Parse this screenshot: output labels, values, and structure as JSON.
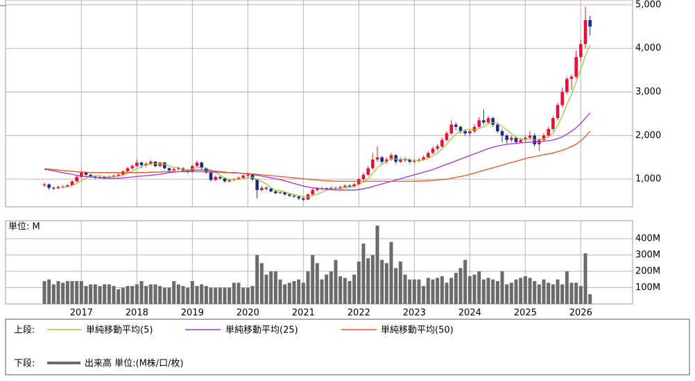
{
  "chart_data": {
    "type": "candlestick",
    "categories": [
      null,
      null,
      null,
      null,
      null,
      null,
      null,
      null,
      "2017",
      null,
      null,
      null,
      null,
      null,
      null,
      null,
      null,
      null,
      null,
      null,
      "2018",
      null,
      null,
      null,
      null,
      null,
      null,
      null,
      null,
      null,
      null,
      null,
      "2019",
      null,
      null,
      null,
      null,
      null,
      null,
      null,
      null,
      null,
      null,
      null,
      "2020",
      null,
      null,
      null,
      null,
      null,
      null,
      null,
      null,
      null,
      null,
      null,
      "2021",
      null,
      null,
      null,
      null,
      null,
      null,
      null,
      null,
      null,
      null,
      null,
      "2022",
      null,
      null,
      null,
      null,
      null,
      null,
      null,
      null,
      null,
      null,
      null,
      "2023",
      null,
      null,
      null,
      null,
      null,
      null,
      null,
      null,
      null,
      null,
      null,
      "2024",
      null,
      null,
      null,
      null,
      null,
      null,
      null,
      null,
      null,
      null,
      null,
      "2025",
      null,
      null,
      null,
      null,
      null,
      null,
      null,
      null,
      null,
      null,
      null,
      "2026",
      null,
      null
    ],
    "open": [
      860,
      880,
      800,
      790,
      820,
      830,
      860,
      950,
      1050,
      1150,
      1100,
      1060,
      1040,
      1050,
      1030,
      1060,
      1080,
      1100,
      1180,
      1250,
      1300,
      1380,
      1320,
      1350,
      1400,
      1300,
      1380,
      1250,
      1200,
      1230,
      1250,
      1200,
      1180,
      1300,
      1380,
      1250,
      1150,
      980,
      1050,
      1020,
      950,
      980,
      1000,
      1030,
      1080,
      1100,
      1000,
      750,
      800,
      780,
      720,
      680,
      700,
      650,
      620,
      600,
      560,
      530,
      650,
      750,
      780,
      790,
      760,
      800,
      780,
      820,
      850,
      830,
      880,
      1000,
      1100,
      1250,
      1450,
      1500,
      1400,
      1450,
      1550,
      1400,
      1450,
      1450,
      1400,
      1420,
      1450,
      1500,
      1600,
      1700,
      1750,
      1900,
      2050,
      2250,
      2200,
      2100,
      2050,
      2100,
      2200,
      2350,
      2300,
      2400,
      2250,
      2100,
      2000,
      1900,
      1950,
      1850,
      1900,
      1950,
      2000,
      1800,
      1900,
      2000,
      2150,
      2400,
      2700,
      3000,
      3300,
      3350,
      3800,
      4100,
      4650
    ],
    "high": [
      920,
      900,
      830,
      850,
      860,
      890,
      970,
      1080,
      1200,
      1170,
      1120,
      1080,
      1080,
      1070,
      1090,
      1110,
      1130,
      1200,
      1280,
      1340,
      1450,
      1400,
      1380,
      1440,
      1420,
      1400,
      1390,
      1270,
      1260,
      1290,
      1270,
      1230,
      1330,
      1420,
      1400,
      1270,
      1160,
      1080,
      1070,
      1030,
      1000,
      1020,
      1060,
      1100,
      1150,
      1120,
      1010,
      850,
      830,
      800,
      740,
      730,
      710,
      670,
      640,
      620,
      580,
      670,
      780,
      820,
      830,
      810,
      830,
      820,
      850,
      880,
      880,
      910,
      1030,
      1150,
      1300,
      1600,
      1750,
      1530,
      1500,
      1600,
      1570,
      1500,
      1500,
      1480,
      1460,
      1490,
      1540,
      1640,
      1750,
      1800,
      1960,
      2100,
      2350,
      2300,
      2230,
      2150,
      2150,
      2260,
      2420,
      2600,
      2450,
      2430,
      2300,
      2150,
      2030,
      2000,
      1980,
      1950,
      2000,
      2100,
      2050,
      1950,
      2050,
      2200,
      2450,
      2750,
      3100,
      3350,
      3400,
      3950,
      4200,
      4950,
      4750
    ],
    "low": [
      820,
      760,
      750,
      770,
      790,
      810,
      840,
      930,
      1030,
      1070,
      1030,
      1010,
      1010,
      1000,
      1010,
      1040,
      1050,
      1080,
      1160,
      1230,
      1280,
      1250,
      1280,
      1320,
      1270,
      1280,
      1220,
      1170,
      1180,
      1200,
      1160,
      1130,
      1150,
      1280,
      1230,
      1120,
      950,
      960,
      990,
      920,
      930,
      960,
      980,
      1010,
      1050,
      960,
      560,
      720,
      740,
      700,
      650,
      660,
      620,
      590,
      570,
      520,
      500,
      520,
      630,
      720,
      750,
      730,
      740,
      750,
      760,
      800,
      800,
      810,
      860,
      970,
      1080,
      1220,
      1400,
      1330,
      1350,
      1420,
      1350,
      1370,
      1400,
      1360,
      1370,
      1390,
      1420,
      1480,
      1570,
      1660,
      1720,
      1870,
      2020,
      2130,
      2050,
      2000,
      1980,
      2050,
      2170,
      2250,
      2250,
      2200,
      2050,
      1850,
      1820,
      1850,
      1800,
      1820,
      1850,
      1900,
      1750,
      1650,
      1860,
      1950,
      2100,
      2350,
      2650,
      2950,
      3050,
      3300,
      3700,
      4000,
      4300
    ],
    "close": [
      880,
      800,
      790,
      820,
      830,
      860,
      950,
      1050,
      1150,
      1100,
      1060,
      1040,
      1050,
      1030,
      1060,
      1080,
      1100,
      1180,
      1250,
      1300,
      1380,
      1320,
      1350,
      1400,
      1300,
      1380,
      1250,
      1200,
      1230,
      1250,
      1200,
      1180,
      1300,
      1380,
      1250,
      1150,
      980,
      1050,
      1020,
      950,
      980,
      1000,
      1030,
      1080,
      1100,
      1000,
      750,
      800,
      780,
      720,
      680,
      700,
      650,
      620,
      600,
      560,
      530,
      650,
      750,
      780,
      790,
      760,
      800,
      780,
      820,
      850,
      830,
      880,
      1000,
      1100,
      1250,
      1450,
      1500,
      1400,
      1450,
      1550,
      1400,
      1450,
      1450,
      1400,
      1420,
      1450,
      1500,
      1600,
      1700,
      1750,
      1900,
      2050,
      2250,
      2200,
      2100,
      2050,
      2100,
      2200,
      2350,
      2300,
      2400,
      2250,
      2100,
      2000,
      1900,
      1950,
      1850,
      1900,
      1950,
      2000,
      1800,
      1900,
      2000,
      2150,
      2400,
      2700,
      3000,
      3300,
      3350,
      3800,
      4100,
      4650,
      4500
    ],
    "up_color": "#e8103a",
    "down_color": "#1c2c86",
    "series": [
      {
        "name": "単純移動平均(5)",
        "color": "#9acd32",
        "values": [
          null,
          null,
          null,
          null,
          824,
          820,
          850,
          902,
          968,
          1022,
          1062,
          1080,
          1080,
          1056,
          1048,
          1052,
          1064,
          1090,
          1134,
          1182,
          1242,
          1286,
          1320,
          1350,
          1350,
          1350,
          1336,
          1306,
          1272,
          1262,
          1226,
          1212,
          1232,
          1262,
          1262,
          1252,
          1212,
          1162,
          1090,
          1030,
          996,
          1000,
          996,
          1008,
          1038,
          1042,
          992,
          946,
          886,
          810,
          746,
          736,
          706,
          674,
          650,
          626,
          592,
          592,
          618,
          654,
          700,
          746,
          776,
          782,
          790,
          802,
          816,
          832,
          876,
          932,
          1012,
          1136,
          1260,
          1340,
          1410,
          1470,
          1460,
          1450,
          1460,
          1450,
          1424,
          1434,
          1444,
          1474,
          1534,
          1600,
          1690,
          1800,
          1930,
          2030,
          2100,
          2130,
          2140,
          2130,
          2160,
          2200,
          2270,
          2300,
          2280,
          2210,
          2130,
          2040,
          1960,
          1920,
          1910,
          1930,
          1900,
          1910,
          1930,
          1970,
          2050,
          2230,
          2450,
          2710,
          2950,
          3230,
          3510,
          3840,
          4080
        ]
      },
      {
        "name": "単純移動平均(25)",
        "color": "#9b30e8",
        "values": [
          1230,
          1210,
          1190,
          1170,
          1150,
          1130,
          1110,
          1090,
          1070,
          1060,
          1050,
          1040,
          1030,
          1020,
          1020,
          1020,
          1020,
          1030,
          1040,
          1050,
          1060,
          1070,
          1080,
          1090,
          1100,
          1110,
          1130,
          1150,
          1160,
          1170,
          1180,
          1190,
          1200,
          1210,
          1210,
          1200,
          1190,
          1180,
          1170,
          1160,
          1150,
          1150,
          1140,
          1130,
          1120,
          1110,
          1090,
          1070,
          1050,
          1030,
          1010,
          990,
          960,
          930,
          900,
          870,
          840,
          820,
          800,
          790,
          780,
          770,
          760,
          750,
          750,
          750,
          750,
          750,
          760,
          780,
          800,
          830,
          860,
          890,
          920,
          950,
          980,
          1010,
          1040,
          1070,
          1100,
          1130,
          1160,
          1190,
          1220,
          1260,
          1300,
          1340,
          1380,
          1420,
          1460,
          1500,
          1540,
          1580,
          1620,
          1660,
          1700,
          1730,
          1760,
          1780,
          1800,
          1810,
          1820,
          1830,
          1840,
          1850,
          1850,
          1860,
          1870,
          1880,
          1900,
          1930,
          1970,
          2030,
          2100,
          2180,
          2280,
          2400,
          2520
        ]
      },
      {
        "name": "単純移動平均(50)",
        "color": "#f0501e",
        "values": [
          1240,
          1230,
          1220,
          1210,
          1200,
          1190,
          1180,
          1170,
          1160,
          1160,
          1150,
          1150,
          1150,
          1150,
          1150,
          1150,
          1150,
          1150,
          1150,
          1150,
          1150,
          1150,
          1150,
          1160,
          1160,
          1160,
          1170,
          1170,
          1170,
          1170,
          1170,
          1170,
          1170,
          1170,
          1170,
          1170,
          1160,
          1160,
          1160,
          1150,
          1150,
          1140,
          1140,
          1130,
          1130,
          1120,
          1110,
          1100,
          1090,
          1080,
          1070,
          1060,
          1050,
          1040,
          1030,
          1020,
          1010,
          1000,
          990,
          980,
          970,
          960,
          960,
          950,
          950,
          950,
          950,
          950,
          950,
          950,
          950,
          950,
          950,
          950,
          950,
          950,
          950,
          950,
          950,
          950,
          950,
          955,
          960,
          965,
          970,
          980,
          990,
          1000,
          1020,
          1040,
          1060,
          1080,
          1110,
          1140,
          1170,
          1200,
          1230,
          1260,
          1290,
          1320,
          1350,
          1380,
          1410,
          1440,
          1470,
          1500,
          1520,
          1540,
          1560,
          1580,
          1600,
          1630,
          1660,
          1700,
          1750,
          1800,
          1880,
          1980,
          2100
        ]
      }
    ],
    "ylim": [
      365,
      5110
    ],
    "yticks": [
      {
        "value": 1000,
        "label": "1,000"
      },
      {
        "value": 2000,
        "label": "2,000"
      },
      {
        "value": 3000,
        "label": "3,000"
      },
      {
        "value": 4000,
        "label": "4,000"
      },
      {
        "value": 5000,
        "label": "5,000"
      }
    ],
    "grid": true,
    "legend_upper": "上段:",
    "legend_lower": "下段:",
    "volume": {
      "type": "bar",
      "name": "出来高 単位:(M株/口/枚)",
      "unit_label": "単位: M",
      "color": "#6b6b6b",
      "values": [
        140,
        150,
        120,
        140,
        130,
        140,
        140,
        140,
        140,
        110,
        120,
        120,
        110,
        120,
        120,
        110,
        90,
        100,
        110,
        110,
        120,
        140,
        110,
        120,
        120,
        110,
        100,
        100,
        140,
        120,
        110,
        100,
        140,
        110,
        120,
        110,
        100,
        100,
        100,
        100,
        100,
        130,
        130,
        100,
        100,
        110,
        300,
        250,
        180,
        200,
        200,
        150,
        120,
        130,
        140,
        150,
        130,
        200,
        300,
        250,
        150,
        180,
        200,
        270,
        170,
        160,
        140,
        180,
        260,
        370,
        280,
        300,
        480,
        270,
        250,
        380,
        220,
        260,
        180,
        150,
        150,
        150,
        110,
        160,
        150,
        160,
        170,
        130,
        160,
        190,
        220,
        270,
        170,
        180,
        200,
        150,
        160,
        150,
        140,
        200,
        120,
        130,
        150,
        160,
        170,
        160,
        140,
        120,
        150,
        130,
        120,
        150,
        120,
        200,
        130,
        130,
        110,
        310,
        60
      ],
      "ylim": [
        0,
        510
      ],
      "yticks": [
        {
          "value": 100,
          "label": "100M"
        },
        {
          "value": 200,
          "label": "200M"
        },
        {
          "value": 300,
          "label": "300M"
        },
        {
          "value": 400,
          "label": "400M"
        }
      ]
    }
  }
}
